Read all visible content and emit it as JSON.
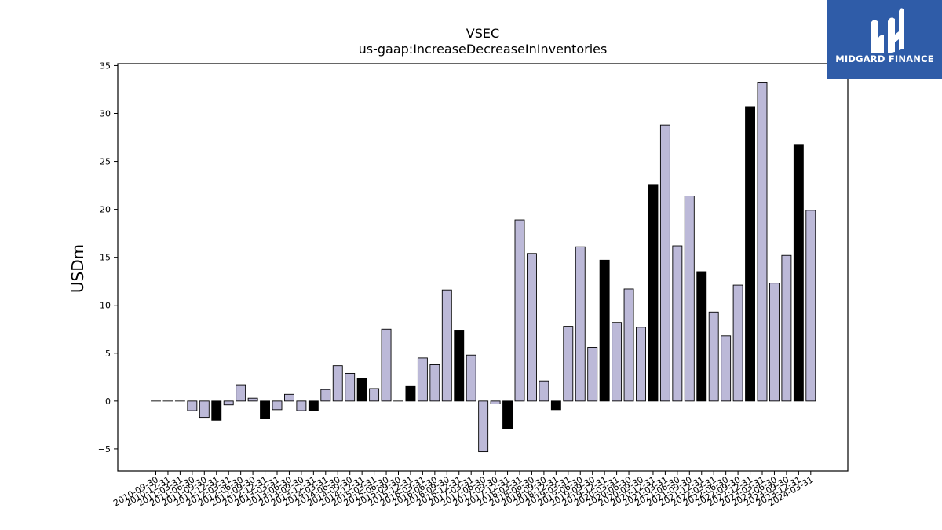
{
  "logo": {
    "text": "MIDGARD FINANCE",
    "bg_color": "#2f5ca8"
  },
  "chart_data": {
    "type": "bar",
    "title": "VSEC",
    "subtitle": "us-gaap:IncreaseDecreaseInInventories",
    "ylabel": "USDm",
    "xlabel": "",
    "ylim": [
      -7.3,
      35.2
    ],
    "yticks": [
      -5,
      0,
      5,
      10,
      15,
      20,
      25,
      30,
      35
    ],
    "ytick_labels": [
      "−5",
      "0",
      "5",
      "10",
      "15",
      "20",
      "25",
      "30",
      "35"
    ],
    "grid": false,
    "colors": {
      "quarter": "#bcb9d8",
      "annual": "#000000",
      "edge": "#000000"
    },
    "categories": [
      "2010-09-30",
      "2010-12-31",
      "2011-03-31",
      "2011-06-30",
      "2011-09-30",
      "2011-12-31",
      "2012-03-31",
      "2012-06-30",
      "2012-09-30",
      "2012-12-31",
      "2013-03-31",
      "2013-06-30",
      "2013-09-30",
      "2013-12-31",
      "2014-03-31",
      "2014-06-30",
      "2014-09-30",
      "2014-12-31",
      "2015-03-31",
      "2015-06-30",
      "2015-09-30",
      "2015-12-31",
      "2016-03-31",
      "2016-06-30",
      "2016-09-30",
      "2016-12-31",
      "2017-03-31",
      "2017-06-30",
      "2017-09-30",
      "2017-12-31",
      "2018-03-31",
      "2018-06-30",
      "2018-09-30",
      "2018-12-31",
      "2019-03-31",
      "2019-06-30",
      "2019-09-30",
      "2019-12-31",
      "2020-03-31",
      "2020-06-30",
      "2020-09-30",
      "2020-12-31",
      "2021-03-31",
      "2021-06-30",
      "2021-09-30",
      "2021-12-31",
      "2022-03-31",
      "2022-06-30",
      "2022-09-30",
      "2022-12-31",
      "2023-03-31",
      "2023-06-30",
      "2023-09-30",
      "2023-12-31",
      "2024-03-31"
    ],
    "values": [
      0,
      0,
      0,
      -1.0,
      -1.7,
      -2.0,
      -0.4,
      1.7,
      0.3,
      -1.8,
      -0.9,
      0.7,
      -1.0,
      -1.0,
      1.2,
      3.7,
      2.9,
      2.4,
      1.3,
      7.5,
      0,
      1.6,
      4.5,
      3.8,
      11.6,
      7.4,
      4.8,
      -5.3,
      -0.3,
      -2.9,
      18.9,
      15.4,
      2.1,
      -0.9,
      7.8,
      16.1,
      5.6,
      14.7,
      8.2,
      11.7,
      7.7,
      22.6,
      28.8,
      16.2,
      21.4,
      13.5,
      9.3,
      6.8,
      12.1,
      30.7,
      33.2,
      12.3,
      15.2,
      26.7,
      19.9
    ],
    "is_annual": [
      false,
      false,
      false,
      false,
      false,
      true,
      false,
      false,
      false,
      true,
      false,
      false,
      false,
      true,
      false,
      false,
      false,
      true,
      false,
      false,
      false,
      true,
      false,
      false,
      false,
      true,
      false,
      false,
      false,
      true,
      false,
      false,
      false,
      true,
      false,
      false,
      false,
      true,
      false,
      false,
      false,
      true,
      false,
      false,
      false,
      true,
      false,
      false,
      false,
      true,
      false,
      false,
      false,
      true,
      false
    ]
  }
}
